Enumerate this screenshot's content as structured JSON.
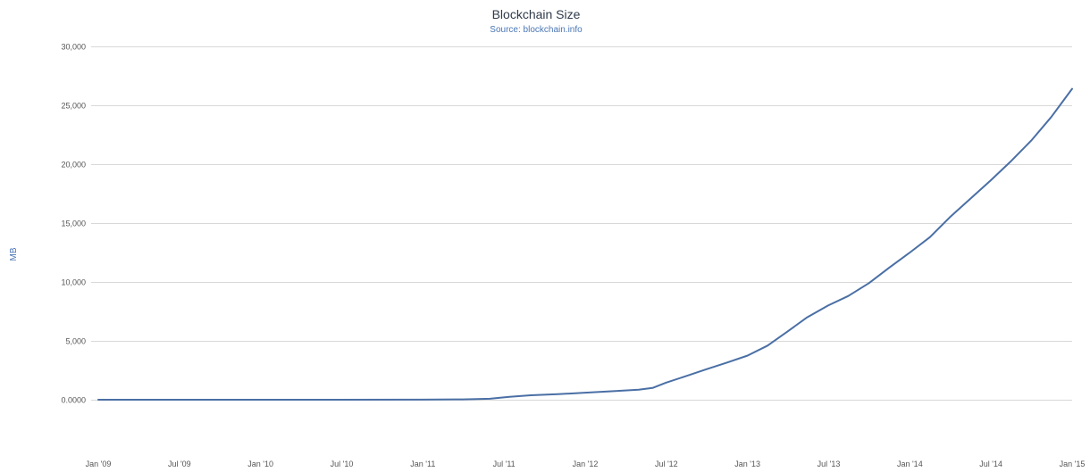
{
  "chart_data": {
    "type": "line",
    "title": "Blockchain Size",
    "subtitle": "Source: blockchain.info",
    "xlabel": "",
    "ylabel": "MB",
    "x_tick_labels": [
      "Jan '09",
      "Jul '09",
      "Jan '10",
      "Jul '10",
      "Jan '11",
      "Jul '11",
      "Jan '12",
      "Jul '12",
      "Jan '13",
      "Jul '13",
      "Jan '14",
      "Jul '14",
      "Jan '15"
    ],
    "y_tick_labels": [
      "30,000",
      "25,000",
      "20,000",
      "15,000",
      "10,000",
      "5,000",
      "0.0000"
    ],
    "y_ticks": [
      30000,
      25000,
      20000,
      15000,
      10000,
      5000,
      0
    ],
    "ylim": [
      -5000,
      30000
    ],
    "xlim": [
      "2009-01-01",
      "2015-01-01"
    ],
    "grid": true,
    "legend": "none",
    "colors": {
      "series": "#4a6fa5",
      "grid": "#d8d8d8"
    },
    "series": [
      {
        "x": [
          "2009-01-01",
          "2009-07-01",
          "2010-01-01",
          "2010-07-01",
          "2011-01-01",
          "2011-04-01",
          "2011-06-01",
          "2011-07-15",
          "2011-09-01",
          "2011-11-01",
          "2012-01-01",
          "2012-03-01",
          "2012-05-01",
          "2012-06-01",
          "2012-07-01",
          "2012-08-15",
          "2012-10-01",
          "2012-11-15",
          "2013-01-01",
          "2013-02-15",
          "2013-04-01",
          "2013-05-15",
          "2013-07-01",
          "2013-08-15",
          "2013-10-01",
          "2013-11-15",
          "2014-01-01",
          "2014-02-15",
          "2014-04-01",
          "2014-05-15",
          "2014-07-01",
          "2014-08-15",
          "2014-10-01",
          "2014-11-15",
          "2015-01-01"
        ],
        "y": [
          0,
          0,
          0,
          0,
          10,
          30,
          80,
          250,
          380,
          470,
          600,
          720,
          850,
          1000,
          1450,
          2000,
          2600,
          3150,
          3750,
          4600,
          5800,
          7000,
          8000,
          8800,
          9900,
          11200,
          12500,
          13800,
          15500,
          17000,
          18600,
          20200,
          22000,
          24000,
          26400
        ]
      }
    ]
  }
}
